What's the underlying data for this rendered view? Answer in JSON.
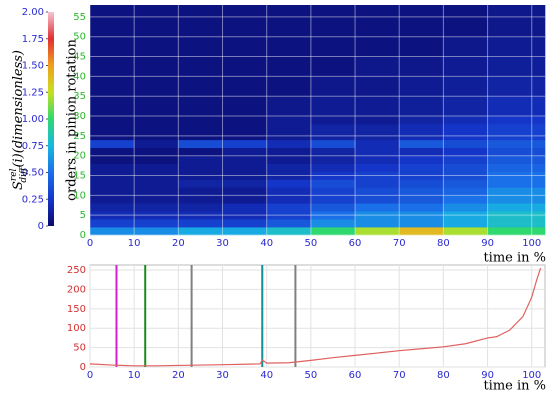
{
  "chart_data": [
    {
      "type": "heatmap",
      "colorbar_label": {
        "symbol": "S",
        "sup": "rel",
        "sub": "diff",
        "rest": "(i)(dimensionless)"
      },
      "ylabel": "orders in pinion rotation",
      "xlabel": "time in %",
      "xbins": [
        0,
        10,
        20,
        30,
        40,
        50,
        60,
        70,
        80,
        90,
        103
      ],
      "ybins": [
        0,
        2,
        4,
        6,
        8,
        10,
        12,
        14,
        16,
        18,
        20,
        22,
        24,
        26,
        28,
        30,
        35,
        40,
        45,
        50,
        58
      ],
      "z": [
        [
          0.6,
          0.6,
          0.7,
          0.7,
          0.8,
          1.0,
          1.2,
          1.4,
          1.2,
          1.0
        ],
        [
          0.3,
          0.3,
          0.3,
          0.3,
          0.4,
          0.6,
          0.6,
          0.6,
          0.7,
          0.8
        ],
        [
          0.2,
          0.2,
          0.2,
          0.2,
          0.3,
          0.5,
          0.6,
          0.6,
          0.7,
          0.8
        ],
        [
          0.15,
          0.15,
          0.15,
          0.2,
          0.3,
          0.4,
          0.5,
          0.5,
          0.6,
          0.7
        ],
        [
          0.1,
          0.1,
          0.1,
          0.1,
          0.2,
          0.3,
          0.35,
          0.4,
          0.5,
          0.6
        ],
        [
          0.1,
          0.1,
          0.1,
          0.1,
          0.2,
          0.3,
          0.35,
          0.4,
          0.45,
          0.6
        ],
        [
          0.1,
          0.1,
          0.15,
          0.15,
          0.25,
          0.35,
          0.3,
          0.35,
          0.4,
          0.5
        ],
        [
          0.1,
          0.1,
          0.1,
          0.1,
          0.15,
          0.25,
          0.3,
          0.3,
          0.35,
          0.5
        ],
        [
          0.1,
          0.1,
          0.1,
          0.1,
          0.15,
          0.2,
          0.25,
          0.3,
          0.35,
          0.45
        ],
        [
          0.05,
          0.05,
          0.1,
          0.1,
          0.1,
          0.15,
          0.2,
          0.25,
          0.3,
          0.4
        ],
        [
          0.05,
          0.05,
          0.05,
          0.1,
          0.1,
          0.15,
          0.2,
          0.2,
          0.25,
          0.35
        ],
        [
          0.3,
          0.1,
          0.35,
          0.3,
          0.2,
          0.35,
          0.2,
          0.4,
          0.35,
          0.4
        ],
        [
          0.05,
          0.05,
          0.05,
          0.05,
          0.1,
          0.15,
          0.15,
          0.2,
          0.25,
          0.3
        ],
        [
          0.05,
          0.05,
          0.05,
          0.05,
          0.1,
          0.15,
          0.15,
          0.2,
          0.25,
          0.3
        ],
        [
          0.05,
          0.05,
          0.05,
          0.05,
          0.1,
          0.1,
          0.1,
          0.15,
          0.2,
          0.25
        ],
        [
          0.05,
          0.05,
          0.05,
          0.05,
          0.08,
          0.1,
          0.1,
          0.12,
          0.15,
          0.2
        ],
        [
          0.05,
          0.05,
          0.05,
          0.05,
          0.05,
          0.08,
          0.08,
          0.1,
          0.12,
          0.15
        ],
        [
          0.05,
          0.05,
          0.05,
          0.05,
          0.05,
          0.05,
          0.08,
          0.08,
          0.1,
          0.12
        ],
        [
          0.05,
          0.05,
          0.05,
          0.05,
          0.05,
          0.05,
          0.05,
          0.05,
          0.08,
          0.1
        ],
        [
          0.05,
          0.05,
          0.05,
          0.05,
          0.05,
          0.05,
          0.05,
          0.05,
          0.05,
          0.08
        ]
      ],
      "clim": [
        0,
        2
      ],
      "colormap": [
        "#0a0a6e",
        "#1535c8",
        "#1a70e8",
        "#18b8e0",
        "#30d870",
        "#c8e020",
        "#f0a020",
        "#e03030",
        "#f4c4d4"
      ],
      "cticks": [
        0,
        0.25,
        {
          "value": 0.5,
          "label": "0.50"
        },
        0.75,
        {
          "value": 1,
          "label": "1.00"
        },
        1.25,
        {
          "value": 1.5,
          "label": "1.50"
        },
        1.75,
        {
          "value": 2,
          "label": "2.00"
        }
      ],
      "xlim": [
        0,
        103
      ],
      "ylim": [
        0,
        58
      ],
      "xticks": [
        0,
        10,
        20,
        30,
        40,
        50,
        60,
        70,
        80,
        90,
        100
      ],
      "yticks": [
        0,
        5,
        10,
        15,
        20,
        25,
        30,
        35,
        40,
        45,
        50,
        55
      ],
      "grid": true
    },
    {
      "type": "line",
      "xlabel": "time in %",
      "x": [
        0,
        5,
        10,
        15,
        20,
        25,
        30,
        35,
        38.5,
        39,
        40,
        45,
        50,
        55,
        60,
        65,
        70,
        75,
        80,
        85,
        90,
        92,
        95,
        98,
        100,
        101,
        102
      ],
      "series": [
        {
          "color": "#e06060",
          "values": [
            8,
            5,
            3,
            3,
            4,
            5,
            6,
            7,
            8,
            18,
            10,
            11,
            17,
            24,
            30,
            36,
            42,
            47,
            52,
            60,
            75,
            78,
            95,
            130,
            180,
            220,
            255
          ]
        }
      ],
      "vlines": [
        {
          "x": 6,
          "color": "#d020d0"
        },
        {
          "x": 12.5,
          "color": "#1a8a1a"
        },
        {
          "x": 23,
          "color": "#808080"
        },
        {
          "x": 39,
          "color": "#109090"
        },
        {
          "x": 46.5,
          "color": "#808080"
        }
      ],
      "xlim": [
        0,
        103
      ],
      "ylim": [
        0,
        263
      ],
      "xticks": [
        0,
        10,
        20,
        30,
        40,
        50,
        60,
        70,
        80,
        90,
        100
      ],
      "yticks": [
        0,
        50,
        100,
        150,
        200,
        250
      ],
      "grid": true
    }
  ]
}
